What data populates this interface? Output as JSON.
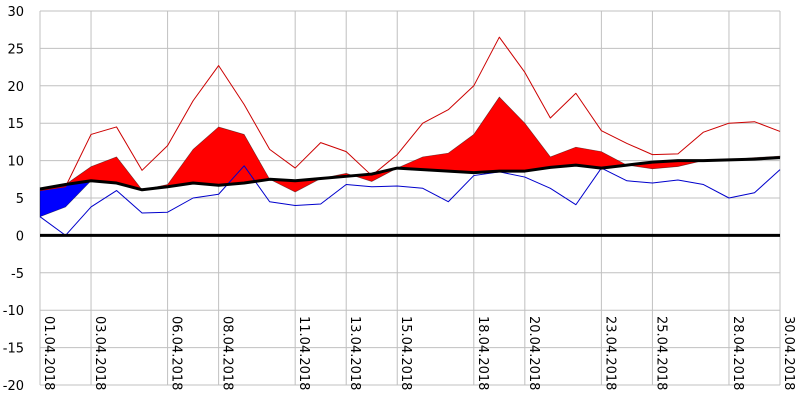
{
  "chart_data": {
    "type": "area",
    "x": [
      "01.04.2018",
      "02.04.2018",
      "03.04.2018",
      "04.04.2018",
      "05.04.2018",
      "06.04.2018",
      "07.04.2018",
      "08.04.2018",
      "09.04.2018",
      "10.04.2018",
      "11.04.2018",
      "12.04.2018",
      "13.04.2018",
      "14.04.2018",
      "15.04.2018",
      "16.04.2018",
      "17.04.2018",
      "18.04.2018",
      "19.04.2018",
      "20.04.2018",
      "21.04.2018",
      "22.04.2018",
      "23.04.2018",
      "24.04.2018",
      "25.04.2018",
      "26.04.2018",
      "27.04.2018",
      "28.04.2018",
      "29.04.2018",
      "30.04.2018"
    ],
    "x_tick_labels": [
      "01.04.2018",
      "03.04.2018",
      "06.04.2018",
      "08.04.2018",
      "11.04.2018",
      "13.04.2018",
      "15.04.2018",
      "18.04.2018",
      "20.04.2018",
      "23.04.2018",
      "25.04.2018",
      "28.04.2018",
      "30.04.2018"
    ],
    "ylim": [
      -20,
      30
    ],
    "y_ticks": [
      -20,
      -15,
      -10,
      -5,
      0,
      5,
      10,
      15,
      20,
      25,
      30
    ],
    "grid": true,
    "zero_line": true,
    "series": [
      {
        "values": [
          6.2,
          6.8,
          7.3,
          7.0,
          6.1,
          6.5,
          7.0,
          6.7,
          7.0,
          7.5,
          7.3,
          7.6,
          7.9,
          8.2,
          9.0,
          8.8,
          8.6,
          8.4,
          8.6,
          8.6,
          9.1,
          9.4,
          9.0,
          9.4,
          9.8,
          10.0,
          10.0,
          10.1,
          10.2,
          10.4
        ]
      },
      {
        "values": [
          6.2,
          6.8,
          9.2,
          10.5,
          6.1,
          6.8,
          11.5,
          14.5,
          13.5,
          7.5,
          5.8,
          7.6,
          8.3,
          7.2,
          9.0,
          10.5,
          11.0,
          13.5,
          18.5,
          15.0,
          10.5,
          11.8,
          11.2,
          9.4,
          8.9,
          9.2,
          10.0,
          10.1,
          10.4,
          10.6
        ]
      },
      {
        "values": [
          2.5,
          3.8,
          7.3,
          7.0,
          6.1,
          6.5,
          7.0,
          6.7,
          7.0,
          7.5,
          7.3,
          7.6,
          7.9,
          8.2,
          9.0,
          8.8,
          8.6,
          8.4,
          8.6,
          8.6,
          9.1,
          9.4,
          9.0,
          9.4,
          9.8,
          10.0,
          10.0,
          10.1,
          10.2,
          10.4
        ]
      },
      {
        "values": [
          6.0,
          6.5,
          13.5,
          14.5,
          8.7,
          12.0,
          18.0,
          22.7,
          17.5,
          11.5,
          9.0,
          12.4,
          11.2,
          8.0,
          10.8,
          15.0,
          16.8,
          20.0,
          26.5,
          21.8,
          15.7,
          19.0,
          14.0,
          12.3,
          10.8,
          10.9,
          13.8,
          15.0,
          15.2,
          13.9
        ]
      },
      {
        "values": [
          2.5,
          0.0,
          3.8,
          6.0,
          3.0,
          3.1,
          5.0,
          5.5,
          9.3,
          4.5,
          4.0,
          4.2,
          6.8,
          6.5,
          6.6,
          6.3,
          4.5,
          8.0,
          8.5,
          7.8,
          6.3,
          4.1,
          9.0,
          7.3,
          7.0,
          7.4,
          6.8,
          5.0,
          5.7,
          8.8
        ]
      }
    ],
    "colors": {
      "above": "#ff0000",
      "below": "#0000ff",
      "mean_line": "#000000",
      "max_line": "#cc0000",
      "min_line": "#0000cc",
      "grid": "#c0c0c0",
      "axis": "#000000"
    }
  }
}
